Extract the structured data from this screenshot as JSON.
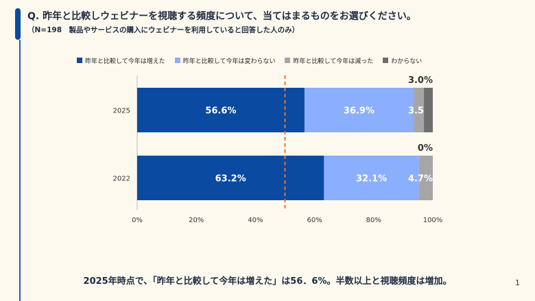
{
  "header": {
    "title": "Q. 昨年と比較しウェビナーを視聴する頻度について、当てはまるものをお選びください。",
    "subtitle": "（N=198　製品やサービスの購入にウェビナーを利用していると回答した人のみ）"
  },
  "chart_data": {
    "type": "bar",
    "orientation": "horizontal-stacked-100",
    "categories": [
      "2025",
      "2022"
    ],
    "series": [
      {
        "name": "昨年と比較して今年は増えた",
        "values": [
          56.6,
          63.2
        ],
        "labels": [
          "56.6%",
          "63.2%"
        ],
        "color": "#0a4aa0"
      },
      {
        "name": "昨年と比較して今年は変わらない",
        "values": [
          36.9,
          32.1
        ],
        "labels": [
          "36.9%",
          "32.1%"
        ],
        "color": "#8caeff"
      },
      {
        "name": "昨年と比較して今年は減った",
        "values": [
          3.5,
          4.7
        ],
        "labels": [
          "3.5%",
          "4.7%"
        ],
        "color": "#a6a6a6"
      },
      {
        "name": "わからない",
        "values": [
          3.0,
          0
        ],
        "labels": [
          "3.0%",
          "0%"
        ],
        "color": "#6e6e6e"
      }
    ],
    "xlim": [
      0,
      100
    ],
    "xticks": [
      "0%",
      "20%",
      "40%",
      "60%",
      "80%",
      "100%"
    ],
    "reference_line": {
      "value": 50,
      "color": "#e8742a",
      "style": "dashed"
    },
    "legend_position": "top",
    "grid": false
  },
  "footer": {
    "summary": "2025年時点で、「昨年と比較して今年は増えた」は56．6%。半数以上と視聴頻度は増加。",
    "page_number": "1"
  }
}
